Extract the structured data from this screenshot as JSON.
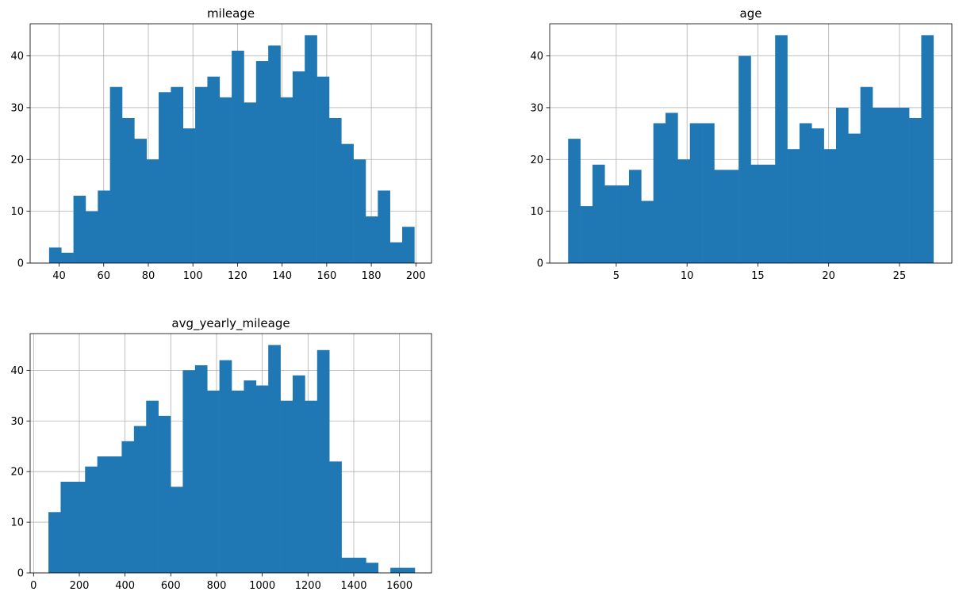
{
  "figure": {
    "background": "#ffffff",
    "bar_color": "#1f77b4",
    "grid_color": "#b0b0b0"
  },
  "chart_data": [
    {
      "type": "bar",
      "subtype": "histogram",
      "title": "mileage",
      "grid": true,
      "xlim": [
        27,
        207
      ],
      "ylim": [
        0,
        46.2
      ],
      "xticks": [
        40,
        60,
        80,
        100,
        120,
        140,
        160,
        180,
        200
      ],
      "yticks": [
        0,
        10,
        20,
        30,
        40
      ],
      "bin_start": 35.5,
      "bin_width": 5.46,
      "values": [
        3,
        2,
        13,
        10,
        14,
        34,
        28,
        24,
        20,
        33,
        34,
        26,
        34,
        36,
        32,
        41,
        31,
        39,
        42,
        32,
        37,
        44,
        36,
        28,
        23,
        20,
        9,
        14,
        4,
        7
      ]
    },
    {
      "type": "bar",
      "subtype": "histogram",
      "title": "age",
      "grid": true,
      "xlim": [
        0.3,
        28.7
      ],
      "ylim": [
        0,
        46.2
      ],
      "xticks": [
        5,
        10,
        15,
        20,
        25
      ],
      "yticks": [
        0,
        10,
        20,
        30,
        40
      ],
      "bin_start": 1.6,
      "bin_width": 0.86,
      "values": [
        24,
        11,
        19,
        15,
        15,
        18,
        12,
        27,
        29,
        20,
        27,
        27,
        18,
        18,
        40,
        19,
        19,
        44,
        22,
        27,
        26,
        22,
        30,
        25,
        34,
        30,
        30,
        30,
        28,
        44
      ]
    },
    {
      "type": "bar",
      "subtype": "histogram",
      "title": "avg_yearly_mileage",
      "grid": true,
      "xlim": [
        -15,
        1740
      ],
      "ylim": [
        0,
        47.25
      ],
      "xticks": [
        0,
        200,
        400,
        600,
        800,
        1000,
        1200,
        1400,
        1600
      ],
      "yticks": [
        0,
        10,
        20,
        30,
        40
      ],
      "bin_start": 65,
      "bin_width": 53.4,
      "values": [
        12,
        18,
        18,
        21,
        23,
        23,
        26,
        29,
        34,
        31,
        17,
        40,
        41,
        36,
        42,
        36,
        38,
        37,
        45,
        34,
        39,
        34,
        44,
        22,
        3,
        3,
        2,
        0,
        1,
        1
      ]
    }
  ]
}
